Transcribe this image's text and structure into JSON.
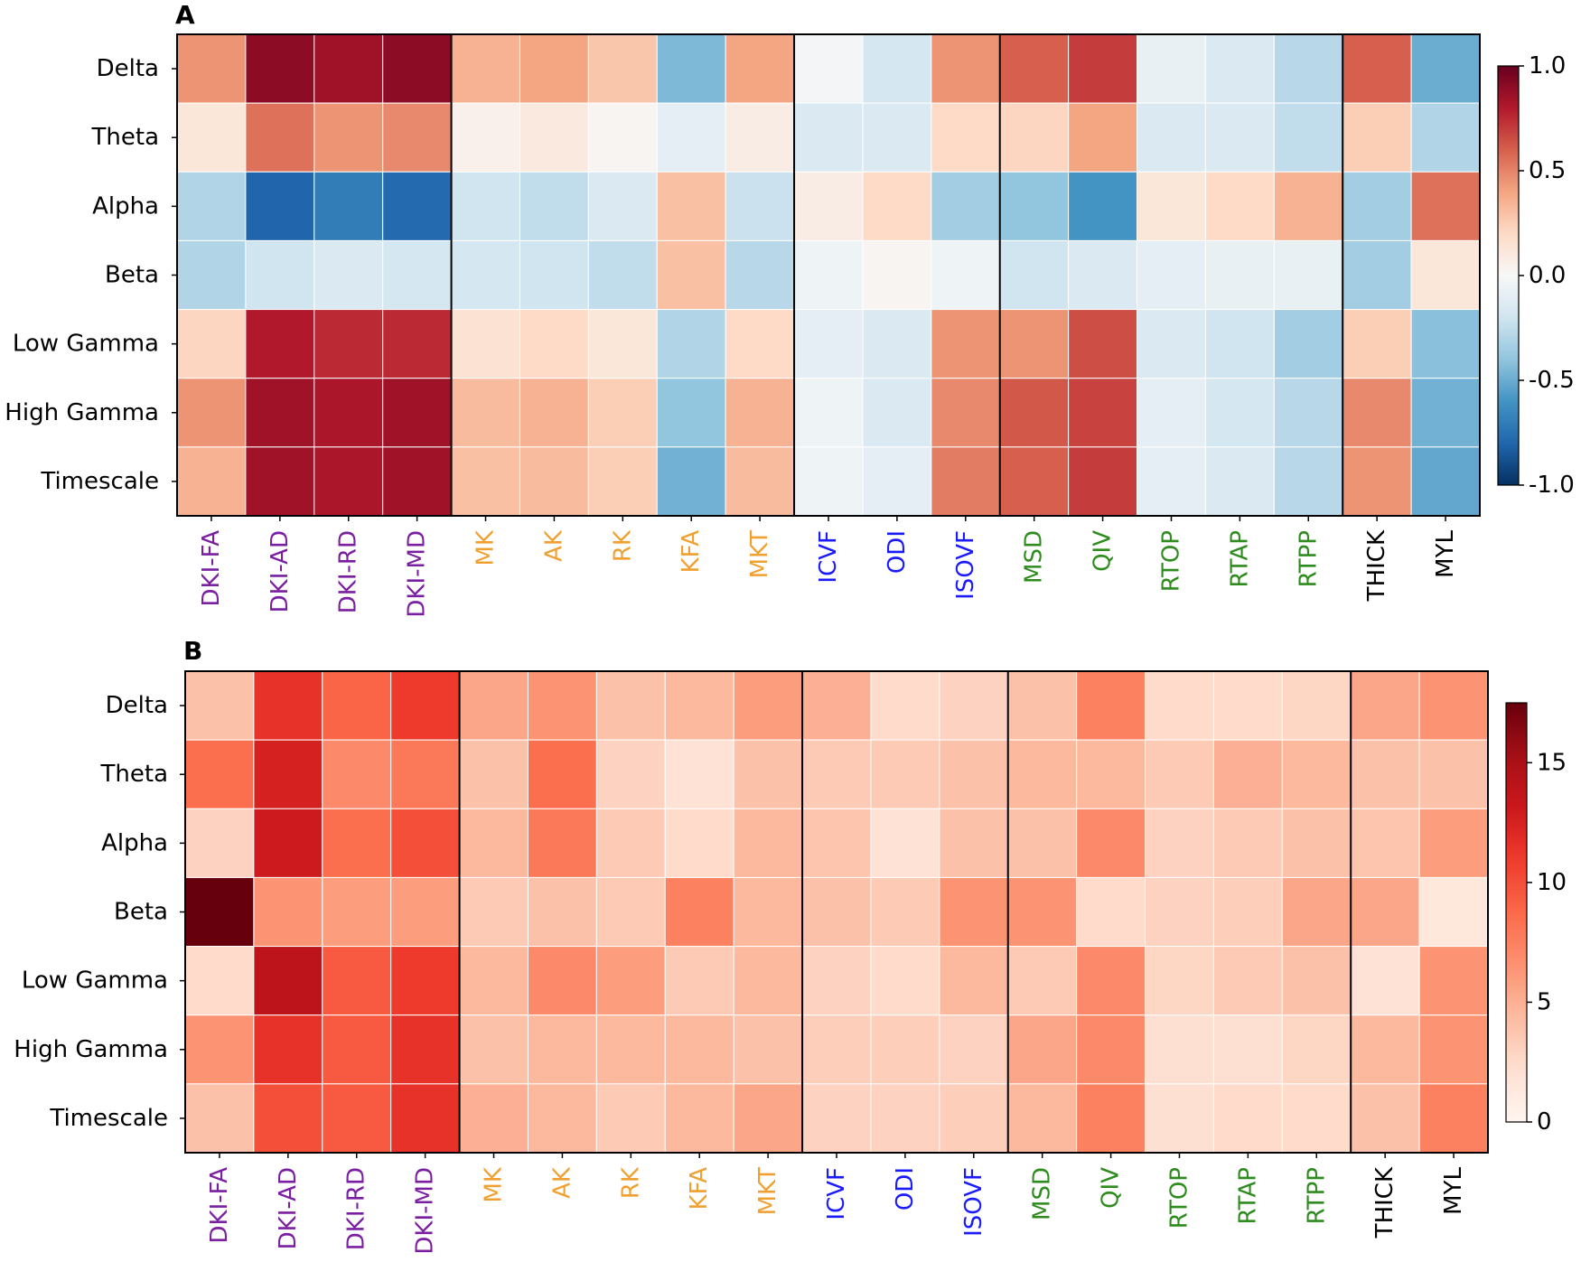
{
  "panels": [
    {
      "label": "A"
    },
    {
      "label": "B"
    }
  ],
  "chart_data": [
    {
      "type": "heatmap",
      "panel": "A",
      "rows": [
        "Delta",
        "Theta",
        "Alpha",
        "Beta",
        "Low Gamma",
        "High Gamma",
        "Timescale"
      ],
      "columns": [
        "DKI-FA",
        "DKI-AD",
        "DKI-RD",
        "DKI-MD",
        "MK",
        "AK",
        "RK",
        "KFA",
        "MKT",
        "ICVF",
        "ODI",
        "ISOVF",
        "MSD",
        "QIV",
        "RTOP",
        "RTAP",
        "RTPP",
        "THICK",
        "MYL"
      ],
      "column_groups": [
        {
          "columns": [
            "DKI-FA",
            "DKI-AD",
            "DKI-RD",
            "DKI-MD"
          ],
          "color": "#7b1fa2"
        },
        {
          "columns": [
            "MK",
            "AK",
            "RK",
            "KFA",
            "MKT"
          ],
          "color": "#f0a030"
        },
        {
          "columns": [
            "ICVF",
            "ODI",
            "ISOVF"
          ],
          "color": "#1a1aff"
        },
        {
          "columns": [
            "MSD",
            "QIV",
            "RTOP",
            "RTAP",
            "RTPP"
          ],
          "color": "#2e8b1e"
        },
        {
          "columns": [
            "THICK",
            "MYL"
          ],
          "color": "#000000"
        }
      ],
      "values": [
        [
          0.45,
          0.9,
          0.85,
          0.9,
          0.35,
          0.4,
          0.28,
          -0.45,
          0.4,
          -0.02,
          -0.18,
          0.45,
          0.6,
          0.7,
          -0.08,
          -0.15,
          -0.28,
          0.6,
          -0.5
        ],
        [
          0.12,
          0.55,
          0.45,
          0.48,
          0.05,
          0.1,
          0.02,
          -0.1,
          0.08,
          -0.15,
          -0.15,
          0.2,
          0.22,
          0.4,
          -0.15,
          -0.15,
          -0.25,
          0.25,
          -0.3
        ],
        [
          -0.3,
          -0.8,
          -0.7,
          -0.78,
          -0.2,
          -0.25,
          -0.15,
          0.3,
          -0.22,
          0.08,
          0.2,
          -0.35,
          -0.4,
          -0.6,
          0.12,
          0.2,
          0.35,
          -0.35,
          0.55
        ],
        [
          -0.3,
          -0.2,
          -0.15,
          -0.18,
          -0.18,
          -0.2,
          -0.25,
          0.3,
          -0.28,
          -0.05,
          0.02,
          -0.05,
          -0.2,
          -0.15,
          -0.1,
          -0.08,
          -0.08,
          -0.35,
          0.12
        ],
        [
          0.22,
          0.8,
          0.75,
          0.75,
          0.15,
          0.2,
          0.12,
          -0.3,
          0.2,
          -0.1,
          -0.15,
          0.45,
          0.45,
          0.65,
          -0.15,
          -0.2,
          -0.35,
          0.25,
          -0.42
        ],
        [
          0.45,
          0.85,
          0.82,
          0.85,
          0.32,
          0.35,
          0.25,
          -0.4,
          0.35,
          -0.05,
          -0.15,
          0.48,
          0.62,
          0.68,
          -0.1,
          -0.18,
          -0.28,
          0.48,
          -0.48
        ],
        [
          0.35,
          0.85,
          0.82,
          0.85,
          0.3,
          0.32,
          0.25,
          -0.48,
          0.32,
          -0.05,
          -0.1,
          0.52,
          0.6,
          0.7,
          -0.1,
          -0.15,
          -0.28,
          0.45,
          -0.52
        ]
      ],
      "colorbar": {
        "cmap": "RdBu_r",
        "min": -1.0,
        "max": 1.0,
        "ticks": [
          1.0,
          0.5,
          0.0,
          -0.5,
          -1.0
        ],
        "tick_labels": [
          "1.0",
          "0.5",
          "0.0",
          "-0.5",
          "-1.0"
        ]
      }
    },
    {
      "type": "heatmap",
      "panel": "B",
      "rows": [
        "Delta",
        "Theta",
        "Alpha",
        "Beta",
        "Low Gamma",
        "High Gamma",
        "Timescale"
      ],
      "columns": [
        "DKI-FA",
        "DKI-AD",
        "DKI-RD",
        "DKI-MD",
        "MK",
        "AK",
        "RK",
        "KFA",
        "MKT",
        "ICVF",
        "ODI",
        "ISOVF",
        "MSD",
        "QIV",
        "RTOP",
        "RTAP",
        "RTPP",
        "THICK",
        "MYL"
      ],
      "column_groups": [
        {
          "columns": [
            "DKI-FA",
            "DKI-AD",
            "DKI-RD",
            "DKI-MD"
          ],
          "color": "#7b1fa2"
        },
        {
          "columns": [
            "MK",
            "AK",
            "RK",
            "KFA",
            "MKT"
          ],
          "color": "#f0a030"
        },
        {
          "columns": [
            "ICVF",
            "ODI",
            "ISOVF"
          ],
          "color": "#1a1aff"
        },
        {
          "columns": [
            "MSD",
            "QIV",
            "RTOP",
            "RTAP",
            "RTPP"
          ],
          "color": "#2e8b1e"
        },
        {
          "columns": [
            "THICK",
            "MYL"
          ],
          "color": "#000000"
        }
      ],
      "values": [
        [
          4.0,
          11.5,
          9.0,
          11.0,
          5.5,
          6.5,
          4.0,
          4.5,
          6.0,
          5.0,
          2.5,
          3.0,
          4.0,
          7.5,
          2.5,
          2.5,
          2.8,
          5.5,
          6.5
        ],
        [
          8.5,
          12.5,
          7.0,
          8.0,
          4.0,
          8.5,
          3.0,
          2.0,
          4.0,
          3.5,
          3.5,
          4.0,
          4.5,
          4.5,
          3.5,
          5.0,
          4.5,
          4.0,
          4.0
        ],
        [
          3.0,
          13.0,
          8.5,
          10.0,
          4.5,
          8.0,
          3.5,
          2.5,
          4.5,
          3.8,
          2.0,
          4.0,
          4.0,
          7.0,
          3.0,
          3.5,
          4.0,
          3.8,
          6.0
        ],
        [
          17.5,
          6.5,
          6.0,
          6.0,
          3.5,
          4.0,
          3.5,
          7.5,
          4.5,
          4.0,
          3.5,
          6.5,
          6.5,
          2.5,
          3.0,
          3.2,
          5.5,
          5.5,
          1.5
        ],
        [
          2.5,
          14.0,
          9.5,
          11.0,
          4.5,
          7.0,
          6.0,
          3.5,
          4.5,
          3.0,
          2.5,
          4.5,
          3.5,
          7.0,
          2.8,
          3.5,
          4.0,
          2.0,
          6.5
        ],
        [
          6.5,
          11.5,
          9.5,
          11.5,
          4.0,
          4.5,
          4.5,
          4.5,
          4.0,
          3.2,
          3.2,
          3.0,
          5.5,
          7.0,
          2.2,
          2.2,
          2.8,
          4.5,
          6.5
        ],
        [
          4.0,
          10.0,
          9.5,
          11.5,
          5.0,
          4.5,
          3.5,
          4.5,
          5.5,
          3.0,
          3.0,
          3.2,
          4.5,
          7.5,
          2.2,
          2.5,
          2.5,
          4.0,
          7.5
        ]
      ],
      "colorbar": {
        "cmap": "Reds",
        "min": 0,
        "max": 17.5,
        "ticks": [
          15,
          10,
          5,
          0
        ],
        "tick_labels": [
          "15",
          "10",
          "5",
          "0"
        ]
      }
    }
  ]
}
